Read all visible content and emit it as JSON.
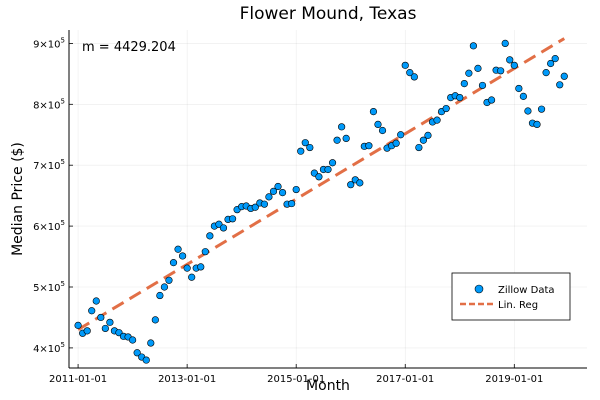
{
  "chart_data": {
    "type": "scatter",
    "title": "Flower Mound, Texas",
    "xlabel": "Month",
    "ylabel": "Median Price ($)",
    "annotation": "m = 4429.204",
    "x_ticks": [
      "2011-01-01",
      "2013-01-01",
      "2015-01-01",
      "2017-01-01",
      "2019-01-01"
    ],
    "y_ticks": [
      {
        "value": 400000,
        "mantissa": "4",
        "exponent": "5"
      },
      {
        "value": 500000,
        "mantissa": "5",
        "exponent": "5"
      },
      {
        "value": 600000,
        "mantissa": "6",
        "exponent": "5"
      },
      {
        "value": 700000,
        "mantissa": "7",
        "exponent": "5"
      },
      {
        "value": 800000,
        "mantissa": "8",
        "exponent": "5"
      },
      {
        "value": 900000,
        "mantissa": "9",
        "exponent": "5"
      }
    ],
    "xlim": [
      "2010-11-01",
      "2020-05-01"
    ],
    "ylim": [
      367000,
      922000
    ],
    "grid": true,
    "legend_position": "bottom-right",
    "series": [
      {
        "name": "Zillow Data",
        "kind": "scatter",
        "color": "#009AFA",
        "points": [
          {
            "x": "2011-01",
            "y": 437000
          },
          {
            "x": "2011-02",
            "y": 424000
          },
          {
            "x": "2011-03",
            "y": 428000
          },
          {
            "x": "2011-04",
            "y": 461000
          },
          {
            "x": "2011-05",
            "y": 477000
          },
          {
            "x": "2011-06",
            "y": 450000
          },
          {
            "x": "2011-07",
            "y": 432000
          },
          {
            "x": "2011-08",
            "y": 442000
          },
          {
            "x": "2011-09",
            "y": 428000
          },
          {
            "x": "2011-10",
            "y": 425000
          },
          {
            "x": "2011-11",
            "y": 419000
          },
          {
            "x": "2011-12",
            "y": 418000
          },
          {
            "x": "2012-01",
            "y": 413000
          },
          {
            "x": "2012-02",
            "y": 392000
          },
          {
            "x": "2012-03",
            "y": 385000
          },
          {
            "x": "2012-04",
            "y": 380000
          },
          {
            "x": "2012-05",
            "y": 408000
          },
          {
            "x": "2012-06",
            "y": 446000
          },
          {
            "x": "2012-07",
            "y": 486000
          },
          {
            "x": "2012-08",
            "y": 500000
          },
          {
            "x": "2012-09",
            "y": 511000
          },
          {
            "x": "2012-10",
            "y": 540000
          },
          {
            "x": "2012-11",
            "y": 562000
          },
          {
            "x": "2012-12",
            "y": 551000
          },
          {
            "x": "2013-01",
            "y": 531000
          },
          {
            "x": "2013-02",
            "y": 516000
          },
          {
            "x": "2013-03",
            "y": 531000
          },
          {
            "x": "2013-04",
            "y": 533000
          },
          {
            "x": "2013-05",
            "y": 558000
          },
          {
            "x": "2013-06",
            "y": 584000
          },
          {
            "x": "2013-07",
            "y": 600000
          },
          {
            "x": "2013-08",
            "y": 603000
          },
          {
            "x": "2013-09",
            "y": 597000
          },
          {
            "x": "2013-10",
            "y": 611000
          },
          {
            "x": "2013-11",
            "y": 612000
          },
          {
            "x": "2013-12",
            "y": 627000
          },
          {
            "x": "2014-01",
            "y": 632000
          },
          {
            "x": "2014-02",
            "y": 633000
          },
          {
            "x": "2014-03",
            "y": 629000
          },
          {
            "x": "2014-04",
            "y": 631000
          },
          {
            "x": "2014-05",
            "y": 638000
          },
          {
            "x": "2014-06",
            "y": 636000
          },
          {
            "x": "2014-07",
            "y": 648000
          },
          {
            "x": "2014-08",
            "y": 657000
          },
          {
            "x": "2014-09",
            "y": 665000
          },
          {
            "x": "2014-10",
            "y": 655000
          },
          {
            "x": "2014-11",
            "y": 636000
          },
          {
            "x": "2014-12",
            "y": 637000
          },
          {
            "x": "2015-01",
            "y": 660000
          },
          {
            "x": "2015-02",
            "y": 723000
          },
          {
            "x": "2015-03",
            "y": 737000
          },
          {
            "x": "2015-04",
            "y": 729000
          },
          {
            "x": "2015-05",
            "y": 687000
          },
          {
            "x": "2015-06",
            "y": 681000
          },
          {
            "x": "2015-07",
            "y": 693000
          },
          {
            "x": "2015-08",
            "y": 693000
          },
          {
            "x": "2015-09",
            "y": 704000
          },
          {
            "x": "2015-10",
            "y": 741000
          },
          {
            "x": "2015-11",
            "y": 763000
          },
          {
            "x": "2015-12",
            "y": 744000
          },
          {
            "x": "2016-01",
            "y": 668000
          },
          {
            "x": "2016-02",
            "y": 676000
          },
          {
            "x": "2016-03",
            "y": 671000
          },
          {
            "x": "2016-04",
            "y": 731000
          },
          {
            "x": "2016-05",
            "y": 732000
          },
          {
            "x": "2016-06",
            "y": 788000
          },
          {
            "x": "2016-07",
            "y": 767000
          },
          {
            "x": "2016-08",
            "y": 757000
          },
          {
            "x": "2016-09",
            "y": 728000
          },
          {
            "x": "2016-10",
            "y": 732000
          },
          {
            "x": "2016-11",
            "y": 736000
          },
          {
            "x": "2016-12",
            "y": 750000
          },
          {
            "x": "2017-01",
            "y": 864000
          },
          {
            "x": "2017-02",
            "y": 852000
          },
          {
            "x": "2017-03",
            "y": 845000
          },
          {
            "x": "2017-04",
            "y": 729000
          },
          {
            "x": "2017-05",
            "y": 741000
          },
          {
            "x": "2017-06",
            "y": 749000
          },
          {
            "x": "2017-07",
            "y": 771000
          },
          {
            "x": "2017-08",
            "y": 774000
          },
          {
            "x": "2017-09",
            "y": 788000
          },
          {
            "x": "2017-10",
            "y": 793000
          },
          {
            "x": "2017-11",
            "y": 811000
          },
          {
            "x": "2017-12",
            "y": 814000
          },
          {
            "x": "2018-01",
            "y": 811000
          },
          {
            "x": "2018-02",
            "y": 834000
          },
          {
            "x": "2018-03",
            "y": 851000
          },
          {
            "x": "2018-04",
            "y": 896000
          },
          {
            "x": "2018-05",
            "y": 859000
          },
          {
            "x": "2018-06",
            "y": 831000
          },
          {
            "x": "2018-07",
            "y": 803000
          },
          {
            "x": "2018-08",
            "y": 807000
          },
          {
            "x": "2018-09",
            "y": 856000
          },
          {
            "x": "2018-10",
            "y": 855000
          },
          {
            "x": "2018-11",
            "y": 900000
          },
          {
            "x": "2018-12",
            "y": 873000
          },
          {
            "x": "2019-01",
            "y": 864000
          },
          {
            "x": "2019-02",
            "y": 826000
          },
          {
            "x": "2019-03",
            "y": 813000
          },
          {
            "x": "2019-04",
            "y": 789000
          },
          {
            "x": "2019-05",
            "y": 769000
          },
          {
            "x": "2019-06",
            "y": 767000
          },
          {
            "x": "2019-07",
            "y": 792000
          },
          {
            "x": "2019-08",
            "y": 852000
          },
          {
            "x": "2019-09",
            "y": 867000
          },
          {
            "x": "2019-10",
            "y": 875000
          },
          {
            "x": "2019-11",
            "y": 832000
          },
          {
            "x": "2019-12",
            "y": 846000
          }
        ]
      },
      {
        "name": "Lin. Reg",
        "kind": "line",
        "style": "dashed",
        "color": "#E26F46",
        "points": [
          {
            "x": "2011-01",
            "y": 430000
          },
          {
            "x": "2019-12",
            "y": 908000
          }
        ]
      }
    ]
  }
}
